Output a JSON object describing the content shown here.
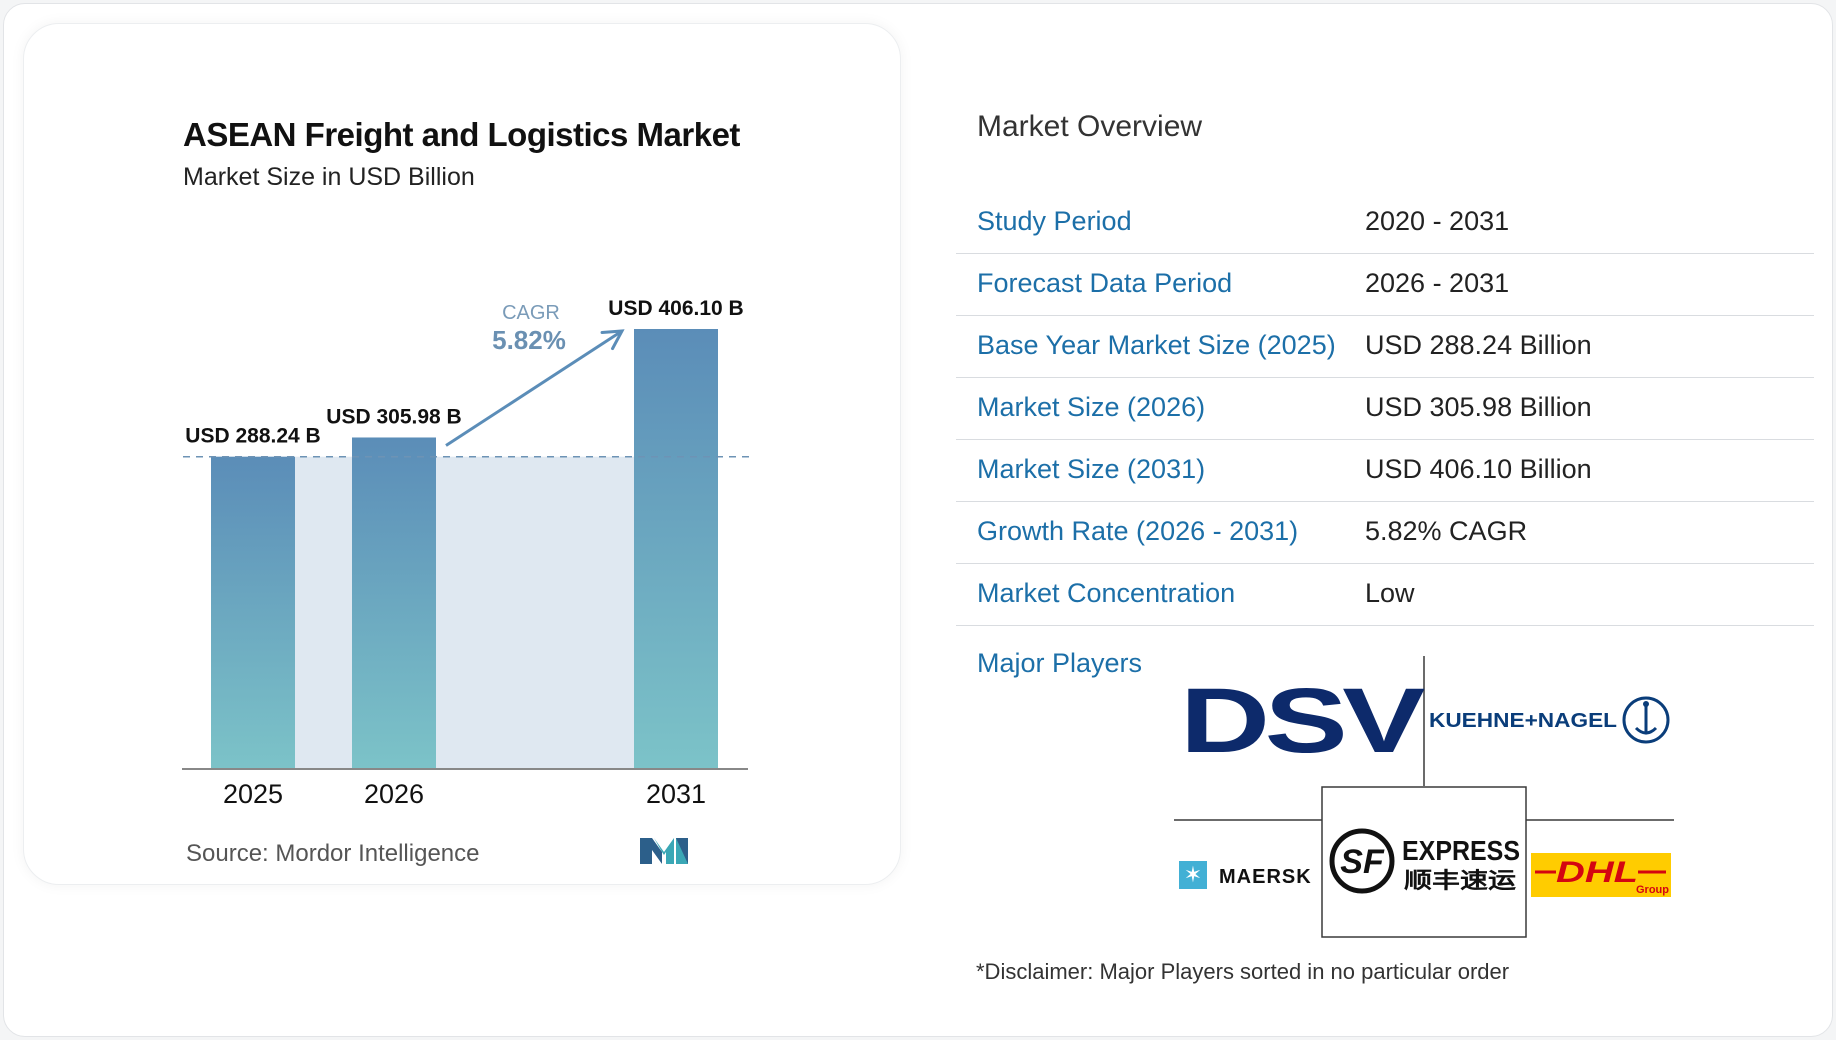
{
  "chart_data": {
    "type": "bar",
    "title": "ASEAN Freight and Logistics Market",
    "subtitle": "Market Size in USD Billion",
    "categories": [
      "2025",
      "2026",
      "2031"
    ],
    "values": [
      288.24,
      305.98,
      406.1
    ],
    "value_labels": [
      "USD 288.24 B",
      "USD 305.98 B",
      "USD 406.10 B"
    ],
    "annotation": {
      "label": "CAGR",
      "value": "5.82%"
    },
    "source": "Source:  Mordor Intelligence",
    "colors": {
      "bar_top": "#5b8db8",
      "bar_bottom": "#7cc3c8",
      "shade": "#dfe8f1",
      "arrow": "#5b8db8",
      "cagr_label": "#7a9bb8",
      "cagr_value": "#6a90b2"
    }
  },
  "overview": {
    "title": "Market Overview",
    "rows": [
      {
        "key": "Study Period",
        "value": "2020 - 2031"
      },
      {
        "key": "Forecast Data Period",
        "value": "2026 - 2031"
      },
      {
        "key": "Base Year Market Size (2025)",
        "value": "USD 288.24 Billion"
      },
      {
        "key": "Market Size (2026)",
        "value": "USD 305.98 Billion"
      },
      {
        "key": "Market Size (2031)",
        "value": "USD 406.10 Billion"
      },
      {
        "key": "Growth Rate (2026 - 2031)",
        "value": "5.82% CAGR"
      },
      {
        "key": "Market Concentration",
        "value": "Low"
      }
    ],
    "players_label": "Major Players",
    "players": [
      {
        "name": "DSV",
        "logo_text": "DSV"
      },
      {
        "name": "Kuehne+Nagel",
        "logo_text": "KUEHNE+NAGEL"
      },
      {
        "name": "Maersk",
        "logo_text": "MAERSK"
      },
      {
        "name": "SF Express",
        "logo_text": "EXPRESS",
        "logo_text_2": "顺丰速运",
        "logo_mark": "SF"
      },
      {
        "name": "DHL Group",
        "logo_text": "DHL",
        "logo_text_2": "Group"
      }
    ],
    "disclaimer": "*Disclaimer: Major Players sorted in no particular order"
  }
}
